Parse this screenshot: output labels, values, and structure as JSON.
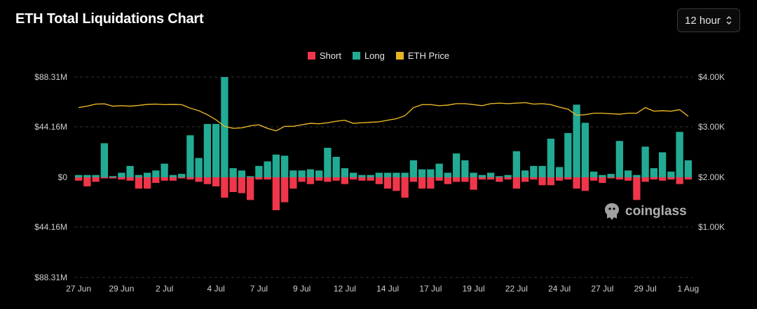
{
  "header": {
    "title": "ETH Total Liquidations Chart",
    "interval": "12 hour"
  },
  "watermark": "coinglass",
  "colors": {
    "short": "#f0364a",
    "long": "#22ab94",
    "price": "#e7b422",
    "grid": "#333333",
    "background": "#000000"
  },
  "chart_data": {
    "type": "bar",
    "title": "ETH Total Liquidations Chart",
    "legend": [
      "Short",
      "Long",
      "ETH Price"
    ],
    "legend_position": "top-center",
    "grid": true,
    "x_tick_labels": [
      "27 Jun",
      "29 Jun",
      "2 Jul",
      "4 Jul",
      "7 Jul",
      "9 Jul",
      "12 Jul",
      "14 Jul",
      "17 Jul",
      "19 Jul",
      "22 Jul",
      "24 Jul",
      "27 Jul",
      "29 Jul",
      "1 Aug"
    ],
    "x_tick_index": [
      0,
      5,
      10,
      16,
      21,
      26,
      31,
      36,
      41,
      46,
      51,
      56,
      61,
      66,
      71
    ],
    "left_axis": {
      "ticks": [
        "$88.31M",
        "$44.16M",
        "$0",
        "$44.16M",
        "$88.31M"
      ],
      "range": [
        -88.31,
        88.31
      ],
      "unit": "USD millions"
    },
    "right_axis": {
      "ticks": [
        "$4.00K",
        "$3.00K",
        "$2.00K",
        "$1.00K"
      ],
      "range": [
        1000,
        4000
      ],
      "unit": "USD"
    },
    "series": [
      {
        "name": "Long",
        "values": [
          2,
          2,
          2,
          30,
          1,
          4,
          10,
          2,
          4,
          6,
          12,
          2,
          3,
          37,
          17,
          47,
          47,
          88.31,
          8,
          6,
          1,
          10,
          14,
          20,
          19,
          6,
          6,
          7,
          6,
          26,
          18,
          8,
          4,
          2,
          2,
          4,
          4,
          4,
          4,
          15,
          7,
          7,
          12,
          4,
          21,
          15,
          4,
          2,
          4,
          1,
          2,
          23,
          6,
          10,
          10,
          34,
          9,
          39,
          64,
          48,
          5,
          2,
          3,
          32,
          6,
          2,
          27,
          8,
          22,
          5,
          40,
          15
        ]
      },
      {
        "name": "Short",
        "values": [
          -3,
          -8,
          -4,
          -1,
          -1,
          -2,
          -3,
          -10,
          -10,
          -5,
          -3,
          -3,
          -1,
          -2,
          -4,
          -6,
          -8,
          -18,
          -13,
          -14,
          -20,
          -2,
          -2,
          -29,
          -22,
          -10,
          -4,
          -6,
          -3,
          -4,
          -3,
          -6,
          -2,
          -3,
          -3,
          -6,
          -10,
          -12,
          -18,
          -4,
          -10,
          -10,
          -3,
          -6,
          -4,
          -4,
          -11,
          -2,
          -2,
          -4,
          -2,
          -10,
          -4,
          -2,
          -7,
          -7,
          -3,
          -2,
          -10,
          -12,
          -3,
          -5,
          -1,
          -2,
          -3,
          -20,
          -4,
          -2,
          -3,
          -2,
          -6,
          -2
        ]
      },
      {
        "name": "ETH Price",
        "values": [
          3380,
          3410,
          3450,
          3455,
          3410,
          3420,
          3410,
          3425,
          3445,
          3450,
          3440,
          3445,
          3440,
          3370,
          3320,
          3240,
          3140,
          3010,
          2970,
          2980,
          3020,
          3040,
          2970,
          2920,
          3010,
          3010,
          3040,
          3070,
          3060,
          3080,
          3110,
          3130,
          3070,
          3080,
          3090,
          3100,
          3130,
          3160,
          3220,
          3380,
          3440,
          3440,
          3420,
          3430,
          3460,
          3460,
          3440,
          3420,
          3460,
          3470,
          3460,
          3470,
          3480,
          3450,
          3460,
          3440,
          3390,
          3350,
          3230,
          3240,
          3270,
          3270,
          3260,
          3250,
          3270,
          3270,
          3380,
          3310,
          3320,
          3310,
          3340,
          3210
        ]
      }
    ]
  }
}
